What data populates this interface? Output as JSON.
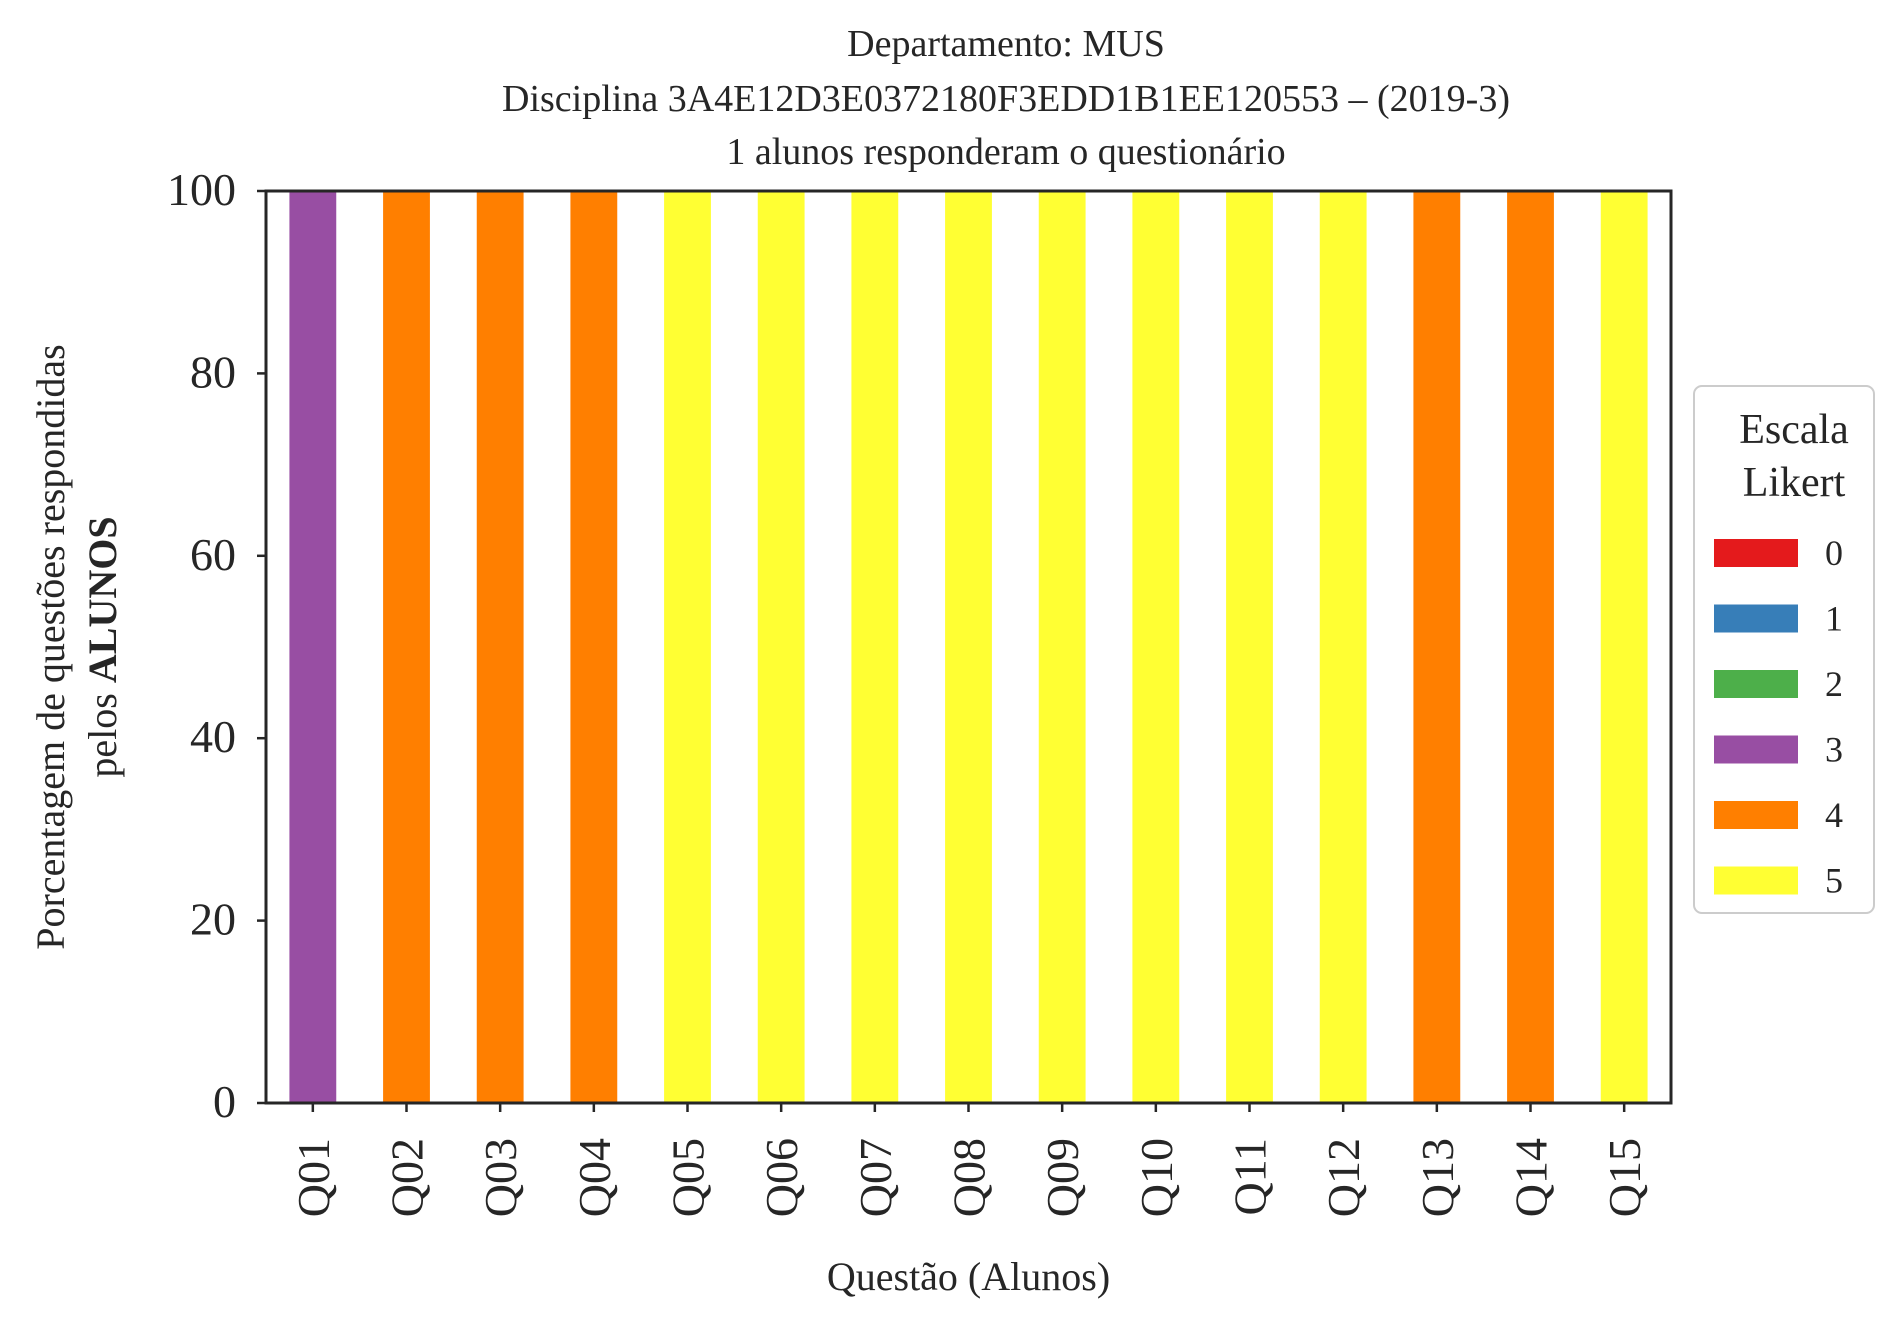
{
  "chart_data": {
    "type": "bar",
    "stacked": true,
    "title_lines": [
      "Departamento: MUS",
      "Disciplina 3A4E12D3E0372180F3EDD1B1EE120553 – (2019-3)",
      "1 alunos responderam o questionário"
    ],
    "xlabel": "Questão (Alunos)",
    "ylabel_line1": "Porcentagem de questões respondidas",
    "ylabel_line2_prefix": "pelos ",
    "ylabel_line2_bold": "ALUNOS",
    "ylim": [
      0,
      100
    ],
    "yticks": [
      0,
      20,
      40,
      60,
      80,
      100
    ],
    "categories": [
      "Q01",
      "Q02",
      "Q03",
      "Q04",
      "Q05",
      "Q06",
      "Q07",
      "Q08",
      "Q09",
      "Q10",
      "Q11",
      "Q12",
      "Q13",
      "Q14",
      "Q15"
    ],
    "series": [
      {
        "name": "0",
        "color": "#e41a1c",
        "values": [
          0,
          0,
          0,
          0,
          0,
          0,
          0,
          0,
          0,
          0,
          0,
          0,
          0,
          0,
          0
        ]
      },
      {
        "name": "1",
        "color": "#377eb8",
        "values": [
          0,
          0,
          0,
          0,
          0,
          0,
          0,
          0,
          0,
          0,
          0,
          0,
          0,
          0,
          0
        ]
      },
      {
        "name": "2",
        "color": "#4daf4a",
        "values": [
          0,
          0,
          0,
          0,
          0,
          0,
          0,
          0,
          0,
          0,
          0,
          0,
          0,
          0,
          0
        ]
      },
      {
        "name": "3",
        "color": "#984ea3",
        "values": [
          100,
          0,
          0,
          0,
          0,
          0,
          0,
          0,
          0,
          0,
          0,
          0,
          0,
          0,
          0
        ]
      },
      {
        "name": "4",
        "color": "#ff7f00",
        "values": [
          0,
          100,
          100,
          100,
          0,
          0,
          0,
          0,
          0,
          0,
          0,
          0,
          100,
          100,
          0
        ]
      },
      {
        "name": "5",
        "color": "#ffff33",
        "values": [
          0,
          0,
          0,
          0,
          100,
          100,
          100,
          100,
          100,
          100,
          100,
          100,
          0,
          0,
          100
        ]
      }
    ],
    "legend": {
      "title_line1": "Escala",
      "title_line2": "Likert",
      "placement": "right"
    },
    "grid": false
  }
}
